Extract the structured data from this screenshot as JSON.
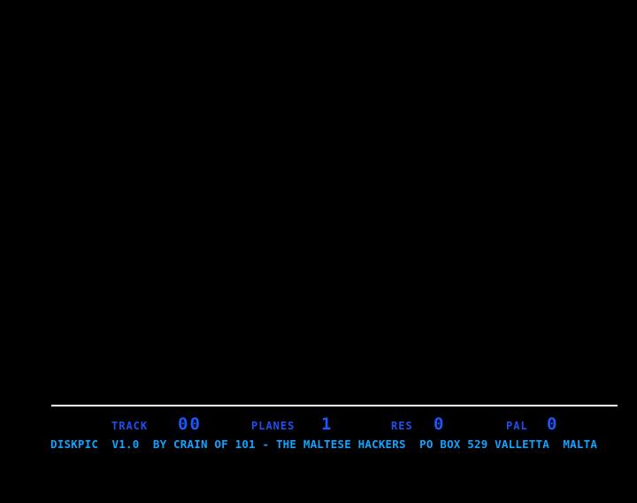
{
  "status": {
    "track_label": "TRACK",
    "track_value": "00",
    "planes_label": "PLANES",
    "planes_value": "1",
    "res_label": "RES",
    "res_value": "0",
    "pal_label": "PAL",
    "pal_value": "0"
  },
  "credit": "DISKPIC  V1.0  BY CRAIN OF 101 - THE MALTESE HACKERS  PO BOX 529 VALLETTA  MALTA",
  "colors": {
    "background": "#000000",
    "rule": "#ffffff",
    "label": "#1e50f0",
    "credit": "#12a2ff"
  }
}
